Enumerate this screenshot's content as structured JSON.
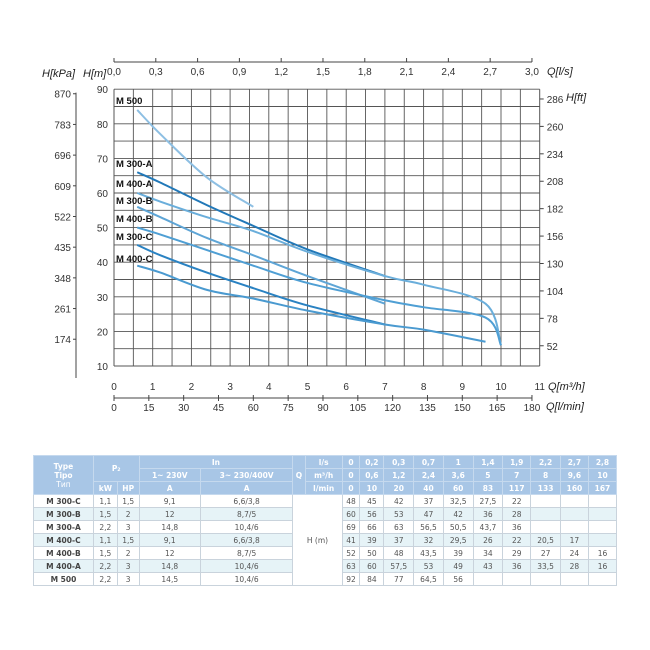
{
  "chart_data": {
    "type": "line",
    "x_axis_primary": {
      "label": "Q[m³/h]",
      "range": [
        0,
        11
      ],
      "ticks": [
        "0",
        "1",
        "2",
        "3",
        "4",
        "5",
        "6",
        "7",
        "8",
        "9",
        "10",
        "11"
      ]
    },
    "x_axis_top": {
      "label": "Q[l/s]",
      "range": [
        0,
        3.0
      ],
      "ticks": [
        "0,0",
        "0,3",
        "0,6",
        "0,9",
        "1,2",
        "1,5",
        "1,8",
        "2,1",
        "2,4",
        "2,7",
        "3,0"
      ]
    },
    "x_axis_bottom2": {
      "label": "Q[l/min]",
      "range": [
        0,
        180
      ],
      "ticks": [
        "0",
        "15",
        "30",
        "45",
        "60",
        "75",
        "90",
        "105",
        "120",
        "135",
        "150",
        "165",
        "180"
      ]
    },
    "y_axis_left": {
      "label": "H[m]",
      "range": [
        10,
        90
      ],
      "ticks": [
        "10",
        "20",
        "30",
        "40",
        "50",
        "60",
        "70",
        "80",
        "90"
      ]
    },
    "y_axis_left2": {
      "label": "H[kPa]",
      "ticks": [
        "870",
        "783",
        "696",
        "609",
        "522",
        "435",
        "348",
        "261",
        "174"
      ]
    },
    "y_axis_right": {
      "label": "H[ft]",
      "ticks": [
        "286",
        "260",
        "234",
        "208",
        "182",
        "156",
        "130",
        "104",
        "78",
        "52"
      ]
    },
    "grid": true,
    "series": [
      {
        "name": "M 500",
        "color": "#8dbfe3",
        "x": [
          0.6,
          1.2,
          2.4,
          3.6
        ],
        "y": [
          84,
          77,
          64.5,
          56
        ]
      },
      {
        "name": "M 300-A",
        "color": "#2178b8",
        "x": [
          0.6,
          1.2,
          2.4,
          3.6,
          5,
          7
        ],
        "y": [
          66,
          63,
          56.5,
          50.5,
          43.7,
          36
        ]
      },
      {
        "name": "M 400-A",
        "color": "#6aaedb",
        "x": [
          0.6,
          1.2,
          2.4,
          3.6,
          5,
          7,
          8,
          9.6,
          10
        ],
        "y": [
          60,
          57.5,
          53,
          49,
          43,
          36,
          33.5,
          28,
          16
        ]
      },
      {
        "name": "M 300-B",
        "color": "#5ea5d6",
        "x": [
          0.6,
          1.2,
          2.4,
          3.6,
          5,
          7
        ],
        "y": [
          56,
          53,
          47,
          42,
          36,
          28
        ]
      },
      {
        "name": "M 400-B",
        "color": "#4f9fd4",
        "x": [
          0.6,
          1.2,
          2.4,
          3.6,
          5,
          7,
          8,
          9.6,
          10
        ],
        "y": [
          50,
          48,
          43.5,
          39,
          34,
          29,
          27,
          24,
          16
        ]
      },
      {
        "name": "M 300-C",
        "color": "#2a82c2",
        "x": [
          0.6,
          1.2,
          2.4,
          3.6,
          5,
          7
        ],
        "y": [
          45,
          42,
          37,
          32.5,
          27.5,
          22
        ]
      },
      {
        "name": "M 400-C",
        "color": "#4a9ad0",
        "x": [
          0.6,
          1.2,
          2.4,
          3.6,
          5,
          7,
          8,
          9.6
        ],
        "y": [
          39,
          37,
          32,
          29.5,
          26,
          22,
          20.5,
          17
        ]
      }
    ]
  },
  "table": {
    "h_type": [
      "Type",
      "Tipo",
      "Тип"
    ],
    "h_p2": "P₂",
    "h_in": "In",
    "h_in1": "1~ 230V",
    "h_in3": "3~ 230/400V",
    "h_q": "Q",
    "h_kw": "kW",
    "h_hp": "HP",
    "h_a1": "A",
    "h_a3": "A",
    "u_ls": "l/s",
    "u_m3h": "m³/h",
    "u_lmin": "l/min",
    "q_ls": [
      "0",
      "0,2",
      "0,3",
      "0,7",
      "1",
      "1,4",
      "1,9",
      "2,2",
      "2,7",
      "2,8"
    ],
    "q_m3h": [
      "0",
      "0,6",
      "1,2",
      "2,4",
      "3,6",
      "5",
      "7",
      "8",
      "9,6",
      "10"
    ],
    "q_lmin": [
      "0",
      "10",
      "20",
      "40",
      "60",
      "83",
      "117",
      "133",
      "160",
      "167"
    ],
    "h_label": "H (m)",
    "rows": [
      {
        "type": "M 300-C",
        "kw": "1,1",
        "hp": "1,5",
        "a1": "9,1",
        "a3": "6,6/3,8",
        "h": [
          "48",
          "45",
          "42",
          "37",
          "32,5",
          "27,5",
          "22",
          "",
          "",
          ""
        ]
      },
      {
        "type": "M 300-B",
        "kw": "1,5",
        "hp": "2",
        "a1": "12",
        "a3": "8,7/5",
        "h": [
          "60",
          "56",
          "53",
          "47",
          "42",
          "36",
          "28",
          "",
          "",
          ""
        ]
      },
      {
        "type": "M 300-A",
        "kw": "2,2",
        "hp": "3",
        "a1": "14,8",
        "a3": "10,4/6",
        "h": [
          "69",
          "66",
          "63",
          "56,5",
          "50,5",
          "43,7",
          "36",
          "",
          "",
          ""
        ]
      },
      {
        "type": "M 400-C",
        "kw": "1,1",
        "hp": "1,5",
        "a1": "9,1",
        "a3": "6,6/3,8",
        "h": [
          "41",
          "39",
          "37",
          "32",
          "29,5",
          "26",
          "22",
          "20,5",
          "17",
          ""
        ]
      },
      {
        "type": "M 400-B",
        "kw": "1,5",
        "hp": "2",
        "a1": "12",
        "a3": "8,7/5",
        "h": [
          "52",
          "50",
          "48",
          "43,5",
          "39",
          "34",
          "29",
          "27",
          "24",
          "16"
        ]
      },
      {
        "type": "M 400-A",
        "kw": "2,2",
        "hp": "3",
        "a1": "14,8",
        "a3": "10,4/6",
        "h": [
          "63",
          "60",
          "57,5",
          "53",
          "49",
          "43",
          "36",
          "33,5",
          "28",
          "16"
        ]
      },
      {
        "type": "M 500",
        "kw": "2,2",
        "hp": "3",
        "a1": "14,5",
        "a3": "10,4/6",
        "h": [
          "92",
          "84",
          "77",
          "64,5",
          "56",
          "",
          "",
          "",
          "",
          ""
        ]
      }
    ]
  }
}
